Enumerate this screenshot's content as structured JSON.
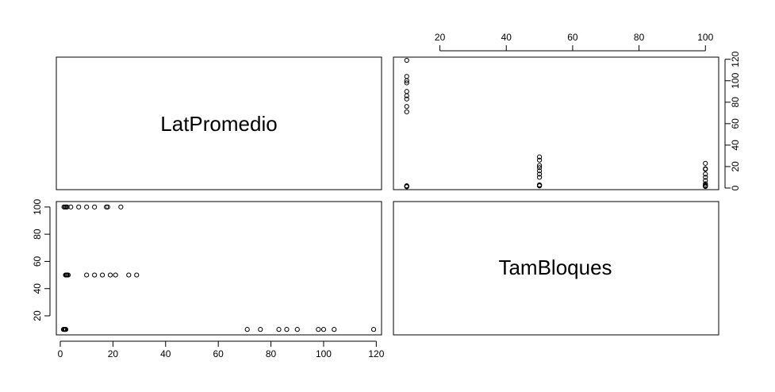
{
  "chart_data": {
    "type": "scatter",
    "variables": [
      "LatPromedio",
      "TamBloques"
    ],
    "LatPromedio": {
      "label": "LatPromedio",
      "ticks": [
        0,
        20,
        40,
        60,
        80,
        100,
        120
      ],
      "range": [
        -1.5,
        122
      ]
    },
    "TamBloques": {
      "label": "TamBloques",
      "ticks": [
        20,
        40,
        60,
        80,
        100
      ],
      "range": [
        6,
        104
      ]
    },
    "points": [
      [
        119,
        10
      ],
      [
        104,
        10
      ],
      [
        100,
        10
      ],
      [
        98,
        10
      ],
      [
        90,
        10
      ],
      [
        86,
        10
      ],
      [
        83,
        10
      ],
      [
        76,
        10
      ],
      [
        71,
        10
      ],
      [
        1.2,
        10
      ],
      [
        1.5,
        10
      ],
      [
        1.8,
        10
      ],
      [
        2.1,
        10
      ],
      [
        29,
        50
      ],
      [
        26,
        50
      ],
      [
        21,
        50
      ],
      [
        19,
        50
      ],
      [
        16,
        50
      ],
      [
        13,
        50
      ],
      [
        10,
        50
      ],
      [
        2.0,
        50
      ],
      [
        2.3,
        50
      ],
      [
        2.6,
        50
      ],
      [
        3.0,
        50
      ],
      [
        23,
        100
      ],
      [
        18,
        100
      ],
      [
        17.5,
        100
      ],
      [
        13,
        100
      ],
      [
        10,
        100
      ],
      [
        7,
        100
      ],
      [
        4,
        100
      ],
      [
        1.4,
        100
      ],
      [
        1.8,
        100
      ],
      [
        2.2,
        100
      ],
      [
        2.6,
        100
      ]
    ]
  }
}
